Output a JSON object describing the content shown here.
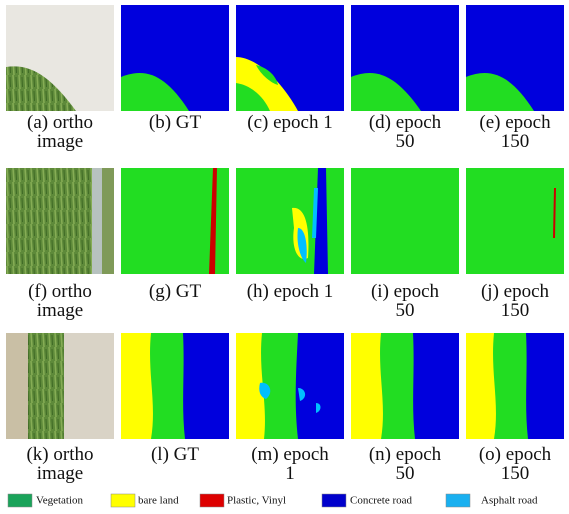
{
  "panels": [
    {
      "caption": [
        "(a) ortho",
        "image"
      ]
    },
    {
      "caption": [
        "(b) GT"
      ]
    },
    {
      "caption": [
        "(c) epoch 1"
      ]
    },
    {
      "caption": [
        "(d) epoch",
        "50"
      ]
    },
    {
      "caption": [
        "(e) epoch",
        "150"
      ]
    },
    {
      "caption": [
        "(f) ortho",
        "image"
      ]
    },
    {
      "caption": [
        "(g) GT"
      ]
    },
    {
      "caption": [
        "(h) epoch 1"
      ]
    },
    {
      "caption": [
        "(i) epoch",
        "50"
      ]
    },
    {
      "caption": [
        "(j) epoch",
        "150"
      ]
    },
    {
      "caption": [
        "(k) ortho",
        "image"
      ]
    },
    {
      "caption": [
        "(l) GT"
      ]
    },
    {
      "caption": [
        "(m) epoch",
        "1"
      ]
    },
    {
      "caption": [
        "(n) epoch",
        "50"
      ]
    },
    {
      "caption": [
        "(o) epoch",
        "150"
      ]
    }
  ],
  "legend": [
    {
      "label": "Vegetation",
      "color": "#1aa35a"
    },
    {
      "label": "bare land",
      "color": "#ffff00"
    },
    {
      "label": "Plastic, Vinyl",
      "color": "#dd0000"
    },
    {
      "label": "Concrete road",
      "color": "#0000cc"
    },
    {
      "label": "Asphalt road",
      "color": "#1ab0f0"
    }
  ]
}
